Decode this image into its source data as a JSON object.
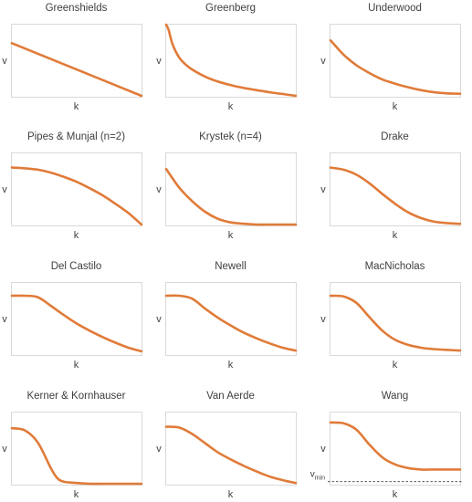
{
  "chart_data": [
    {
      "type": "line",
      "title": "Greenshields",
      "xlabel": "k",
      "ylabel": "v",
      "x": [
        0,
        1
      ],
      "series": [
        {
          "values": [
            0.74,
            0.0
          ]
        }
      ]
    },
    {
      "type": "line",
      "title": "Greenberg",
      "xlabel": "k",
      "ylabel": "v",
      "x": [
        0.0,
        0.02,
        0.05,
        0.1,
        0.15,
        0.2,
        0.3,
        0.4,
        0.5,
        0.6,
        0.7,
        0.8,
        0.9,
        1.0
      ],
      "series": [
        {
          "values": [
            1.0,
            0.92,
            0.72,
            0.54,
            0.44,
            0.37,
            0.27,
            0.2,
            0.15,
            0.11,
            0.08,
            0.05,
            0.025,
            0.0
          ]
        }
      ]
    },
    {
      "type": "line",
      "title": "Underwood",
      "xlabel": "k",
      "ylabel": "v",
      "x": [
        0.0,
        0.1,
        0.2,
        0.3,
        0.4,
        0.5,
        0.6,
        0.7,
        0.8,
        0.9,
        1.0
      ],
      "series": [
        {
          "values": [
            0.78,
            0.58,
            0.43,
            0.32,
            0.23,
            0.17,
            0.12,
            0.08,
            0.05,
            0.035,
            0.03
          ]
        }
      ]
    },
    {
      "type": "line",
      "title": "Pipes & Munjal (n=2)",
      "xlabel": "k",
      "ylabel": "v",
      "x": [
        0.0,
        0.1,
        0.2,
        0.3,
        0.4,
        0.5,
        0.6,
        0.7,
        0.8,
        0.9,
        1.0
      ],
      "series": [
        {
          "values": [
            0.8,
            0.79,
            0.77,
            0.73,
            0.67,
            0.6,
            0.51,
            0.41,
            0.29,
            0.16,
            0.0
          ]
        }
      ]
    },
    {
      "type": "line",
      "title": "Krystek (n=4)",
      "xlabel": "k",
      "ylabel": "v",
      "x": [
        0.0,
        0.1,
        0.2,
        0.3,
        0.4,
        0.5,
        0.6,
        0.7,
        0.8,
        0.9,
        1.0
      ],
      "series": [
        {
          "values": [
            0.78,
            0.52,
            0.33,
            0.18,
            0.08,
            0.03,
            0.01,
            0.0,
            0.0,
            0.0,
            0.0
          ]
        }
      ]
    },
    {
      "type": "line",
      "title": "Drake",
      "xlabel": "k",
      "ylabel": "v",
      "x": [
        0.0,
        0.1,
        0.2,
        0.3,
        0.4,
        0.5,
        0.6,
        0.7,
        0.8,
        0.9,
        1.0
      ],
      "series": [
        {
          "values": [
            0.8,
            0.77,
            0.7,
            0.58,
            0.43,
            0.29,
            0.17,
            0.09,
            0.04,
            0.02,
            0.01
          ]
        }
      ]
    },
    {
      "type": "line",
      "title": "Del Castilo",
      "xlabel": "k",
      "ylabel": "v",
      "x": [
        0.0,
        0.1,
        0.2,
        0.3,
        0.4,
        0.5,
        0.6,
        0.7,
        0.8,
        0.9,
        1.0
      ],
      "series": [
        {
          "values": [
            0.82,
            0.82,
            0.8,
            0.68,
            0.55,
            0.43,
            0.33,
            0.24,
            0.16,
            0.09,
            0.04
          ]
        }
      ]
    },
    {
      "type": "line",
      "title": "Newell",
      "xlabel": "k",
      "ylabel": "v",
      "x": [
        0.0,
        0.1,
        0.2,
        0.3,
        0.4,
        0.5,
        0.6,
        0.7,
        0.8,
        0.9,
        1.0
      ],
      "series": [
        {
          "values": [
            0.82,
            0.82,
            0.78,
            0.64,
            0.51,
            0.4,
            0.3,
            0.22,
            0.15,
            0.09,
            0.05
          ]
        }
      ]
    },
    {
      "type": "line",
      "title": "MacNicholas",
      "xlabel": "k",
      "ylabel": "v",
      "x": [
        0.0,
        0.1,
        0.2,
        0.3,
        0.4,
        0.5,
        0.6,
        0.7,
        0.8,
        0.9,
        1.0
      ],
      "series": [
        {
          "values": [
            0.82,
            0.81,
            0.72,
            0.52,
            0.33,
            0.2,
            0.13,
            0.09,
            0.07,
            0.06,
            0.05
          ]
        }
      ]
    },
    {
      "type": "line",
      "title": "Kerner & Kornhauser",
      "xlabel": "k",
      "ylabel": "v",
      "x": [
        0.0,
        0.1,
        0.2,
        0.3,
        0.35,
        0.4,
        0.5,
        0.6,
        0.7,
        0.8,
        0.9,
        1.0
      ],
      "series": [
        {
          "values": [
            0.78,
            0.75,
            0.58,
            0.22,
            0.08,
            0.03,
            0.01,
            0.0,
            0.0,
            0.0,
            0.0,
            0.0
          ]
        }
      ]
    },
    {
      "type": "line",
      "title": "Van Aerde",
      "xlabel": "k",
      "ylabel": "v",
      "x": [
        0.0,
        0.1,
        0.2,
        0.3,
        0.4,
        0.5,
        0.6,
        0.7,
        0.8,
        0.9,
        1.0
      ],
      "series": [
        {
          "values": [
            0.8,
            0.79,
            0.7,
            0.57,
            0.44,
            0.34,
            0.25,
            0.17,
            0.1,
            0.05,
            0.01
          ]
        }
      ]
    },
    {
      "type": "line",
      "title": "Wang",
      "xlabel": "k",
      "ylabel": "v",
      "annotation": "v_min",
      "x": [
        0.0,
        0.1,
        0.2,
        0.3,
        0.4,
        0.5,
        0.6,
        0.7,
        0.8,
        0.9,
        1.0
      ],
      "series": [
        {
          "values": [
            0.86,
            0.85,
            0.76,
            0.55,
            0.37,
            0.27,
            0.22,
            0.2,
            0.2,
            0.2,
            0.2
          ]
        }
      ],
      "hline": {
        "label": "v",
        "sub": "min",
        "value": 0.03
      }
    }
  ],
  "style": {
    "curve_color": "#E07B39",
    "frame_color": "#D9D9D9",
    "text_color": "#404040"
  }
}
